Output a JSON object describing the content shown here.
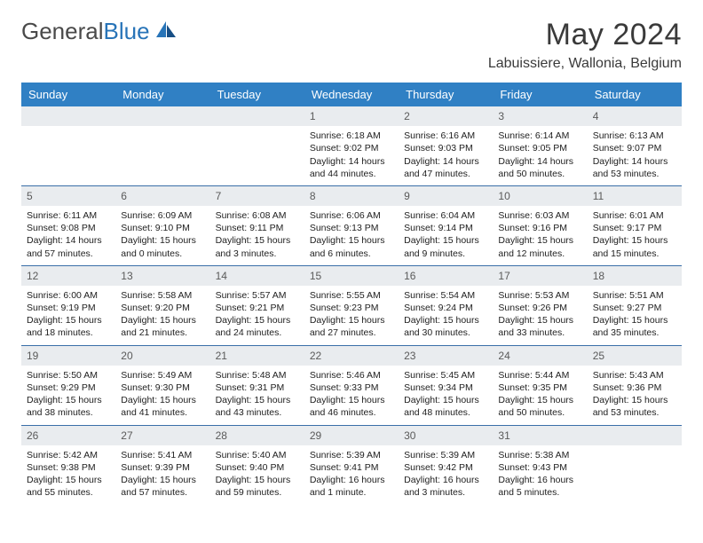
{
  "logo": {
    "text1": "General",
    "text2": "Blue"
  },
  "title": "May 2024",
  "subtitle": "Labuissiere, Wallonia, Belgium",
  "colors": {
    "header_bg": "#3080c4",
    "header_text": "#ffffff",
    "daynum_bg": "#e9ecef",
    "row_border": "#3a6fa8",
    "body_text": "#212121",
    "title_text": "#3a3a3a",
    "logo_accent": "#2874b8"
  },
  "weekdays": [
    "Sunday",
    "Monday",
    "Tuesday",
    "Wednesday",
    "Thursday",
    "Friday",
    "Saturday"
  ],
  "weeks": [
    {
      "nums": [
        "",
        "",
        "",
        "1",
        "2",
        "3",
        "4"
      ],
      "cells": [
        null,
        null,
        null,
        {
          "sunrise": "Sunrise: 6:18 AM",
          "sunset": "Sunset: 9:02 PM",
          "d1": "Daylight: 14 hours",
          "d2": "and 44 minutes."
        },
        {
          "sunrise": "Sunrise: 6:16 AM",
          "sunset": "Sunset: 9:03 PM",
          "d1": "Daylight: 14 hours",
          "d2": "and 47 minutes."
        },
        {
          "sunrise": "Sunrise: 6:14 AM",
          "sunset": "Sunset: 9:05 PM",
          "d1": "Daylight: 14 hours",
          "d2": "and 50 minutes."
        },
        {
          "sunrise": "Sunrise: 6:13 AM",
          "sunset": "Sunset: 9:07 PM",
          "d1": "Daylight: 14 hours",
          "d2": "and 53 minutes."
        }
      ]
    },
    {
      "nums": [
        "5",
        "6",
        "7",
        "8",
        "9",
        "10",
        "11"
      ],
      "cells": [
        {
          "sunrise": "Sunrise: 6:11 AM",
          "sunset": "Sunset: 9:08 PM",
          "d1": "Daylight: 14 hours",
          "d2": "and 57 minutes."
        },
        {
          "sunrise": "Sunrise: 6:09 AM",
          "sunset": "Sunset: 9:10 PM",
          "d1": "Daylight: 15 hours",
          "d2": "and 0 minutes."
        },
        {
          "sunrise": "Sunrise: 6:08 AM",
          "sunset": "Sunset: 9:11 PM",
          "d1": "Daylight: 15 hours",
          "d2": "and 3 minutes."
        },
        {
          "sunrise": "Sunrise: 6:06 AM",
          "sunset": "Sunset: 9:13 PM",
          "d1": "Daylight: 15 hours",
          "d2": "and 6 minutes."
        },
        {
          "sunrise": "Sunrise: 6:04 AM",
          "sunset": "Sunset: 9:14 PM",
          "d1": "Daylight: 15 hours",
          "d2": "and 9 minutes."
        },
        {
          "sunrise": "Sunrise: 6:03 AM",
          "sunset": "Sunset: 9:16 PM",
          "d1": "Daylight: 15 hours",
          "d2": "and 12 minutes."
        },
        {
          "sunrise": "Sunrise: 6:01 AM",
          "sunset": "Sunset: 9:17 PM",
          "d1": "Daylight: 15 hours",
          "d2": "and 15 minutes."
        }
      ]
    },
    {
      "nums": [
        "12",
        "13",
        "14",
        "15",
        "16",
        "17",
        "18"
      ],
      "cells": [
        {
          "sunrise": "Sunrise: 6:00 AM",
          "sunset": "Sunset: 9:19 PM",
          "d1": "Daylight: 15 hours",
          "d2": "and 18 minutes."
        },
        {
          "sunrise": "Sunrise: 5:58 AM",
          "sunset": "Sunset: 9:20 PM",
          "d1": "Daylight: 15 hours",
          "d2": "and 21 minutes."
        },
        {
          "sunrise": "Sunrise: 5:57 AM",
          "sunset": "Sunset: 9:21 PM",
          "d1": "Daylight: 15 hours",
          "d2": "and 24 minutes."
        },
        {
          "sunrise": "Sunrise: 5:55 AM",
          "sunset": "Sunset: 9:23 PM",
          "d1": "Daylight: 15 hours",
          "d2": "and 27 minutes."
        },
        {
          "sunrise": "Sunrise: 5:54 AM",
          "sunset": "Sunset: 9:24 PM",
          "d1": "Daylight: 15 hours",
          "d2": "and 30 minutes."
        },
        {
          "sunrise": "Sunrise: 5:53 AM",
          "sunset": "Sunset: 9:26 PM",
          "d1": "Daylight: 15 hours",
          "d2": "and 33 minutes."
        },
        {
          "sunrise": "Sunrise: 5:51 AM",
          "sunset": "Sunset: 9:27 PM",
          "d1": "Daylight: 15 hours",
          "d2": "and 35 minutes."
        }
      ]
    },
    {
      "nums": [
        "19",
        "20",
        "21",
        "22",
        "23",
        "24",
        "25"
      ],
      "cells": [
        {
          "sunrise": "Sunrise: 5:50 AM",
          "sunset": "Sunset: 9:29 PM",
          "d1": "Daylight: 15 hours",
          "d2": "and 38 minutes."
        },
        {
          "sunrise": "Sunrise: 5:49 AM",
          "sunset": "Sunset: 9:30 PM",
          "d1": "Daylight: 15 hours",
          "d2": "and 41 minutes."
        },
        {
          "sunrise": "Sunrise: 5:48 AM",
          "sunset": "Sunset: 9:31 PM",
          "d1": "Daylight: 15 hours",
          "d2": "and 43 minutes."
        },
        {
          "sunrise": "Sunrise: 5:46 AM",
          "sunset": "Sunset: 9:33 PM",
          "d1": "Daylight: 15 hours",
          "d2": "and 46 minutes."
        },
        {
          "sunrise": "Sunrise: 5:45 AM",
          "sunset": "Sunset: 9:34 PM",
          "d1": "Daylight: 15 hours",
          "d2": "and 48 minutes."
        },
        {
          "sunrise": "Sunrise: 5:44 AM",
          "sunset": "Sunset: 9:35 PM",
          "d1": "Daylight: 15 hours",
          "d2": "and 50 minutes."
        },
        {
          "sunrise": "Sunrise: 5:43 AM",
          "sunset": "Sunset: 9:36 PM",
          "d1": "Daylight: 15 hours",
          "d2": "and 53 minutes."
        }
      ]
    },
    {
      "nums": [
        "26",
        "27",
        "28",
        "29",
        "30",
        "31",
        ""
      ],
      "cells": [
        {
          "sunrise": "Sunrise: 5:42 AM",
          "sunset": "Sunset: 9:38 PM",
          "d1": "Daylight: 15 hours",
          "d2": "and 55 minutes."
        },
        {
          "sunrise": "Sunrise: 5:41 AM",
          "sunset": "Sunset: 9:39 PM",
          "d1": "Daylight: 15 hours",
          "d2": "and 57 minutes."
        },
        {
          "sunrise": "Sunrise: 5:40 AM",
          "sunset": "Sunset: 9:40 PM",
          "d1": "Daylight: 15 hours",
          "d2": "and 59 minutes."
        },
        {
          "sunrise": "Sunrise: 5:39 AM",
          "sunset": "Sunset: 9:41 PM",
          "d1": "Daylight: 16 hours",
          "d2": "and 1 minute."
        },
        {
          "sunrise": "Sunrise: 5:39 AM",
          "sunset": "Sunset: 9:42 PM",
          "d1": "Daylight: 16 hours",
          "d2": "and 3 minutes."
        },
        {
          "sunrise": "Sunrise: 5:38 AM",
          "sunset": "Sunset: 9:43 PM",
          "d1": "Daylight: 16 hours",
          "d2": "and 5 minutes."
        },
        null
      ]
    }
  ]
}
